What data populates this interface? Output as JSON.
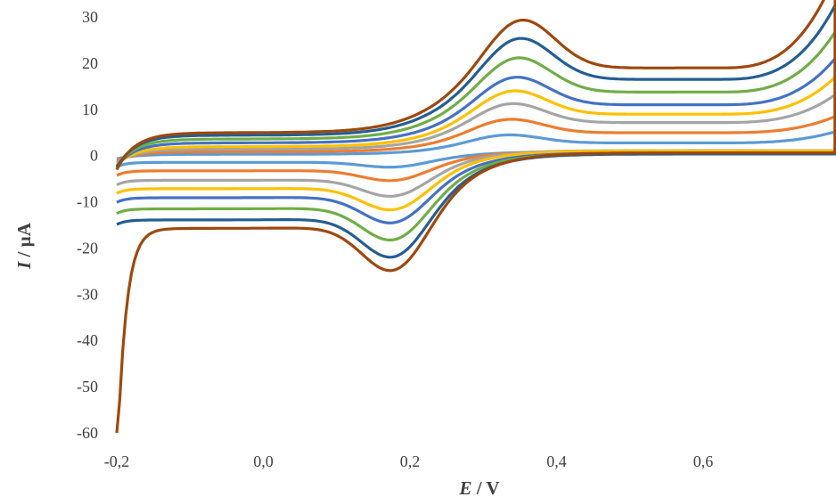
{
  "chart_data": {
    "type": "line",
    "title": "",
    "xlabel": {
      "symbol": "E",
      "unit": " / V"
    },
    "ylabel": {
      "symbol": "I",
      "unit": " / µA"
    },
    "xlim": [
      -0.2,
      0.78
    ],
    "ylim": [
      -60,
      30
    ],
    "x_ticks": [
      -0.2,
      0.0,
      0.2,
      0.4,
      0.6
    ],
    "x_tick_labels": [
      "-0,2",
      "0,0",
      "0,2",
      "0,4",
      "0,6"
    ],
    "y_ticks": [
      30,
      20,
      10,
      0,
      -10,
      -20,
      -30,
      -40,
      -50,
      -60
    ],
    "y_tick_labels": [
      "30",
      "20",
      "10",
      "0",
      "-10",
      "-20",
      "-30",
      "-40",
      "-50",
      "-60"
    ],
    "grid": false,
    "legend": "none",
    "series": [
      {
        "color": "#5B9BD5",
        "ipa": 4.5,
        "ipc": -2.5,
        "cap": 0.5,
        "emax": 2.4,
        "emin": -2,
        "tail": -1
      },
      {
        "color": "#ED7D31",
        "ipa": 7.5,
        "ipc": -5.0,
        "cap": 1.5,
        "emax": 3.5,
        "emin": -3,
        "tail": -2
      },
      {
        "color": "#A5A5A5",
        "ipa": 10.5,
        "ipc": -8.0,
        "cap": 2.5,
        "emax": 6,
        "emin": -4,
        "tail": -3
      },
      {
        "color": "#FFC000",
        "ipa": 12.8,
        "ipc": -10.5,
        "cap": 3.5,
        "emax": 8,
        "emin": -5,
        "tail": -4
      },
      {
        "color": "#4472C4",
        "ipa": 15.0,
        "ipc": -12.5,
        "cap": 5.0,
        "emax": 10,
        "emin": -6,
        "tail": -5
      },
      {
        "color": "#70AD47",
        "ipa": 18.5,
        "ipc": -15.5,
        "cap": 6.5,
        "emax": 13,
        "emin": -7,
        "tail": -6
      },
      {
        "color": "#255E91",
        "ipa": 22.0,
        "ipc": -18.5,
        "cap": 8.0,
        "emax": 16,
        "emin": -8,
        "tail": -7
      },
      {
        "color": "#9E480E",
        "ipa": 25.5,
        "ipc": -21.0,
        "cap": 9.0,
        "emax": 20,
        "emin": -60,
        "tail": -8
      }
    ]
  }
}
